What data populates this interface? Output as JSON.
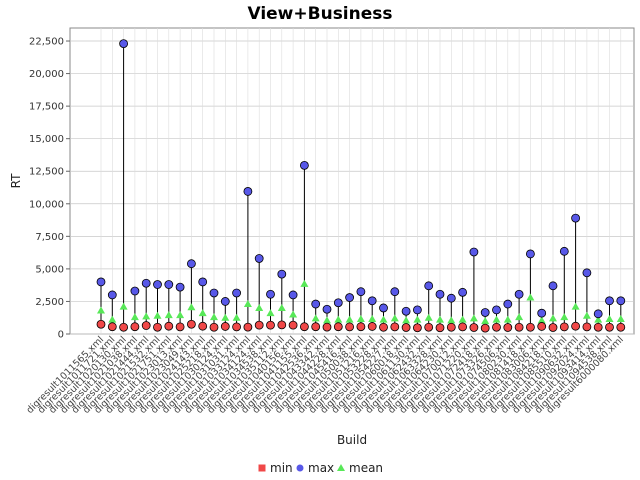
{
  "chart_data": {
    "type": "scatter",
    "title": "View+Business",
    "xlabel": "Build",
    "ylabel": "RT",
    "ylim": [
      0,
      23500
    ],
    "yticks": [
      0,
      2500,
      5000,
      7500,
      10000,
      12500,
      15000,
      17500,
      20000,
      22500
    ],
    "ytick_labels": [
      "0",
      "2,500",
      "5,000",
      "7,500",
      "10,000",
      "12,500",
      "15,000",
      "17,500",
      "20,000",
      "22,500"
    ],
    "grid": "both",
    "legend_position": "bottom",
    "categories": [
      "digresult1011565.xml",
      "digresult1011721.xml",
      "digresult1020130.xml",
      "digresult1021038.xml",
      "digresult1021444.xml",
      "digresult1021532.xml",
      "digresult1021751.xml",
      "digresult1023013.xml",
      "digresult1023049.xml",
      "digresult1024143.xml",
      "digresult1025218.xml",
      "digresult1030124.xml",
      "digresult1031031.xml",
      "digresult1033124.xml",
      "digresult1034124.xml",
      "digresult1034538.xml",
      "digresult1035112.xml",
      "digresult1040156.xml",
      "digresult1041155.xml",
      "digresult1042536.xml",
      "digresult1043342.xml",
      "digresult1044228.xml",
      "digresult1045416.xml",
      "digresult1050038.xml",
      "digresult1051216.xml",
      "digresult1053228.xml",
      "digresult1054227.xml",
      "digresult1060018.xml",
      "digresult1061130.xml",
      "digresult1062432.xml",
      "digresult1063328.xml",
      "digresult1064230.xml",
      "digresult1070012.xml",
      "digresult1071220.xml",
      "digresult1072418.xml",
      "digresult1073326.xml",
      "digresult1074506.xml",
      "digresult1080230.xml",
      "digresult1081418.xml",
      "digresult1083006.xml",
      "digresult1084218.xml",
      "digresult1085510.xml",
      "digresult1090632.xml",
      "digresult1092024.xml",
      "digresult1093414.xml",
      "digresult1094538.xml",
      "digresult6000080.xml"
    ],
    "series": [
      {
        "name": "min",
        "color": "#f04848",
        "values": [
          750,
          560,
          520,
          560,
          650,
          520,
          600,
          550,
          750,
          600,
          520,
          580,
          550,
          530,
          680,
          680,
          700,
          680,
          560,
          560,
          530,
          560,
          550,
          560,
          580,
          520,
          550,
          500,
          480,
          520,
          480,
          520,
          550,
          500,
          450,
          520,
          500,
          520,
          520,
          580,
          500,
          550,
          600,
          550,
          520,
          520,
          520
        ]
      },
      {
        "name": "max",
        "color": "#5858e8",
        "values": [
          4000,
          3000,
          22300,
          3300,
          3900,
          3800,
          3800,
          3600,
          5400,
          4000,
          3150,
          2500,
          3150,
          10950,
          5800,
          3050,
          4600,
          3000,
          12950,
          2300,
          1900,
          2400,
          2800,
          3250,
          2550,
          2000,
          3250,
          1750,
          1850,
          3700,
          3050,
          2750,
          3200,
          6300,
          1650,
          1850,
          2300,
          3050,
          6150,
          1600,
          3700,
          6350,
          8900,
          4700,
          1550,
          2550,
          2550
        ]
      },
      {
        "name": "mean",
        "color": "#58e858",
        "values": [
          1800,
          1100,
          2100,
          1300,
          1350,
          1400,
          1450,
          1450,
          2050,
          1600,
          1300,
          1250,
          1250,
          2300,
          2000,
          1600,
          2000,
          1500,
          3850,
          1200,
          1050,
          1100,
          1100,
          1150,
          1150,
          1100,
          1200,
          1050,
          1100,
          1250,
          1100,
          1050,
          1100,
          1200,
          1000,
          1100,
          1100,
          1300,
          2800,
          1050,
          1200,
          1300,
          2100,
          1400,
          1100,
          1150,
          1150
        ]
      }
    ]
  }
}
